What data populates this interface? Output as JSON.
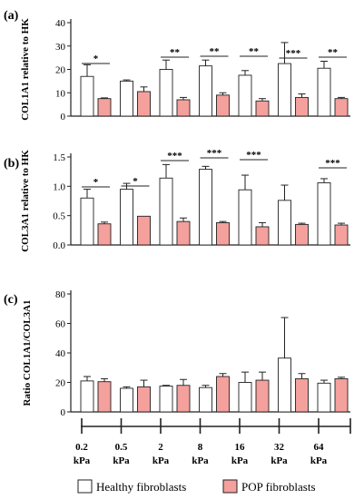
{
  "legend": {
    "healthy_label": "Healthy fibroblasts",
    "pop_label": "POP fibroblasts"
  },
  "colors": {
    "healthy": "#ffffff",
    "pop": "#f4a09c",
    "stroke": "#222222"
  },
  "categories": [
    "0.2 kPa",
    "0.5 kPa",
    "2 kPa",
    "8 kPa",
    "16 kPa",
    "32 kPa",
    "64 kPa"
  ],
  "category_lines": [
    [
      "0.2",
      "kPa"
    ],
    [
      "0.5",
      "kPa"
    ],
    [
      "2",
      "kPa"
    ],
    [
      "8",
      "kPa"
    ],
    [
      "16",
      "kPa"
    ],
    [
      "32",
      "kPa"
    ],
    [
      "64",
      "kPa"
    ]
  ],
  "chart_data": [
    {
      "type": "bar",
      "panel": "(a)",
      "ylabel": "COL1A1 relative to HK",
      "ylim": [
        0,
        40
      ],
      "yticks": [
        0,
        10,
        20,
        30,
        40
      ],
      "categories": [
        "0.2 kPa",
        "0.5 kPa",
        "2 kPa",
        "8 kPa",
        "16 kPa",
        "32 kPa",
        "64 kPa"
      ],
      "series": [
        {
          "name": "Healthy fibroblasts",
          "values": [
            17,
            15,
            20,
            21.5,
            17.5,
            22.5,
            20.5
          ],
          "errors": [
            5,
            0.5,
            4,
            2.5,
            2,
            9,
            3
          ]
        },
        {
          "name": "POP fibroblasts",
          "values": [
            7.5,
            10.5,
            7,
            9,
            6.5,
            8,
            7.5
          ],
          "errors": [
            0.3,
            2,
            1,
            1,
            1,
            1.5,
            0.5
          ]
        }
      ],
      "significance": [
        "*",
        "",
        "**",
        "**",
        "**",
        "***",
        "**"
      ]
    },
    {
      "type": "bar",
      "panel": "(b)",
      "ylabel": "COL3A1 relative to HK",
      "ylim": [
        0,
        1.5
      ],
      "yticks": [
        0,
        0.5,
        1.0,
        1.5
      ],
      "ytick_labels": [
        "0.0",
        "0.5",
        "1.0",
        "1.5"
      ],
      "categories": [
        "0.2 kPa",
        "0.5 kPa",
        "2 kPa",
        "8 kPa",
        "16 kPa",
        "32 kPa",
        "64 kPa"
      ],
      "series": [
        {
          "name": "Healthy fibroblasts",
          "values": [
            0.8,
            0.95,
            1.14,
            1.29,
            0.94,
            0.76,
            1.06
          ],
          "errors": [
            0.15,
            0.1,
            0.23,
            0.05,
            0.25,
            0.26,
            0.07
          ]
        },
        {
          "name": "POP fibroblasts",
          "values": [
            0.36,
            0.49,
            0.4,
            0.38,
            0.31,
            0.35,
            0.34
          ],
          "errors": [
            0.03,
            0,
            0.06,
            0.02,
            0.07,
            0.02,
            0.03
          ]
        }
      ],
      "significance": [
        "*",
        "*",
        "***",
        "***",
        "***",
        "",
        "***"
      ]
    },
    {
      "type": "bar",
      "panel": "(c)",
      "ylabel": "Ratio COL1A1/COL3A1",
      "ylim": [
        0,
        80
      ],
      "yticks": [
        0,
        20,
        40,
        60,
        80
      ],
      "categories": [
        "0.2 kPa",
        "0.5 kPa",
        "2 kPa",
        "8 kPa",
        "16 kPa",
        "32 kPa",
        "64 kPa"
      ],
      "series": [
        {
          "name": "Healthy fibroblasts",
          "values": [
            21,
            16,
            17.5,
            16.5,
            20,
            36.5,
            19.5
          ],
          "errors": [
            3,
            1,
            0.5,
            1.5,
            7,
            27.5,
            2
          ]
        },
        {
          "name": "POP fibroblasts",
          "values": [
            20.5,
            17,
            18,
            24,
            21.5,
            22.5,
            22.5
          ],
          "errors": [
            2,
            4.5,
            4,
            2,
            5.5,
            3.5,
            1
          ]
        }
      ],
      "significance": [
        "",
        "",
        "",
        "",
        "",
        "",
        ""
      ]
    }
  ]
}
